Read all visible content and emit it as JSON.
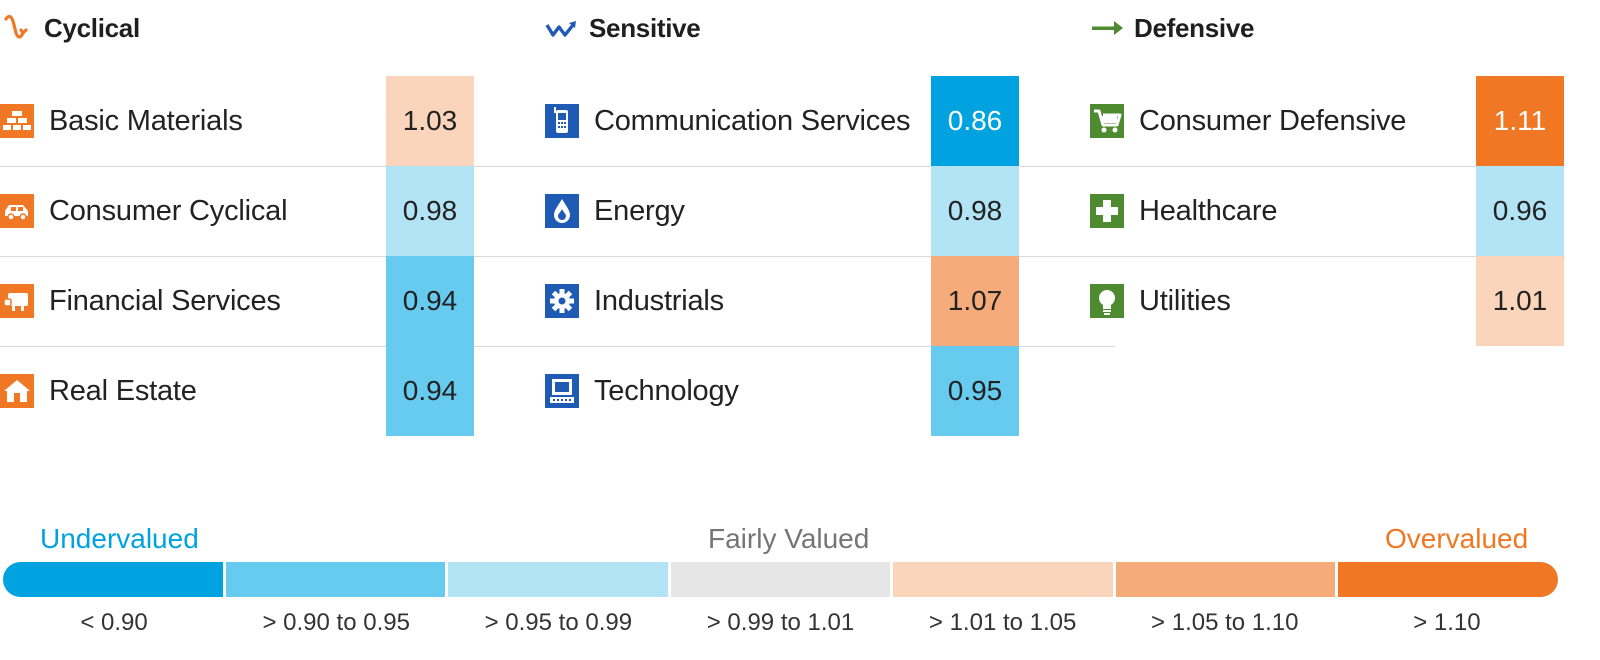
{
  "colors": {
    "undervalued_dark": "#00a3e0",
    "undervalued_mid": "#66cbef",
    "undervalued_light": "#b3e4f6",
    "fair": "#e6e6e6",
    "overvalued_light": "#fad5bc",
    "overvalued_mid": "#f5ac7a",
    "overvalued_dark": "#f07824",
    "cyclical": "#f07824",
    "sensitive": "#1f5ab4",
    "defensive": "#4e8a2f"
  },
  "groups": [
    {
      "title": "Cyclical",
      "icon": "cyclical-icon",
      "sectors": [
        {
          "name": "Basic Materials",
          "value": "1.03",
          "icon": "basic-materials-icon"
        },
        {
          "name": "Consumer Cyclical",
          "value": "0.98",
          "icon": "consumer-cyclical-icon"
        },
        {
          "name": "Financial Services",
          "value": "0.94",
          "icon": "financial-services-icon"
        },
        {
          "name": "Real Estate",
          "value": "0.94",
          "icon": "real-estate-icon"
        }
      ]
    },
    {
      "title": "Sensitive",
      "icon": "sensitive-icon",
      "sectors": [
        {
          "name": "Communication Services",
          "value": "0.86",
          "icon": "communication-services-icon"
        },
        {
          "name": "Energy",
          "value": "0.98",
          "icon": "energy-icon"
        },
        {
          "name": "Industrials",
          "value": "1.07",
          "icon": "industrials-icon"
        },
        {
          "name": "Technology",
          "value": "0.95",
          "icon": "technology-icon"
        }
      ]
    },
    {
      "title": "Defensive",
      "icon": "defensive-icon",
      "sectors": [
        {
          "name": "Consumer Defensive",
          "value": "1.11",
          "icon": "consumer-defensive-icon"
        },
        {
          "name": "Healthcare",
          "value": "0.96",
          "icon": "healthcare-icon"
        },
        {
          "name": "Utilities",
          "value": "1.01",
          "icon": "utilities-icon"
        }
      ]
    }
  ],
  "legend": {
    "undervalued_label": "Undervalued",
    "fair_label": "Fairly Valued",
    "overvalued_label": "Overvalued",
    "ranges": [
      "< 0.90",
      "> 0.90 to 0.95",
      "> 0.95 to 0.99",
      "> 0.99 to 1.01",
      "> 1.01 to 1.05",
      "> 1.05 to 1.10",
      "> 1.10"
    ]
  },
  "chart_data": {
    "type": "table",
    "columns": [
      "Cyclical",
      "Sensitive",
      "Defensive"
    ],
    "series": [
      {
        "name": "Cyclical",
        "categories": [
          "Basic Materials",
          "Consumer Cyclical",
          "Financial Services",
          "Real Estate"
        ],
        "values": [
          1.03,
          0.98,
          0.94,
          0.94
        ]
      },
      {
        "name": "Sensitive",
        "categories": [
          "Communication Services",
          "Energy",
          "Industrials",
          "Technology"
        ],
        "values": [
          0.86,
          0.98,
          1.07,
          0.95
        ]
      },
      {
        "name": "Defensive",
        "categories": [
          "Consumer Defensive",
          "Healthcare",
          "Utilities"
        ],
        "values": [
          1.11,
          0.96,
          1.01
        ]
      }
    ],
    "legend_bins": [
      "< 0.90",
      "> 0.90 to 0.95",
      "> 0.95 to 0.99",
      "> 0.99 to 1.01",
      "> 1.01 to 1.05",
      "> 1.05 to 1.10",
      "> 1.10"
    ]
  }
}
